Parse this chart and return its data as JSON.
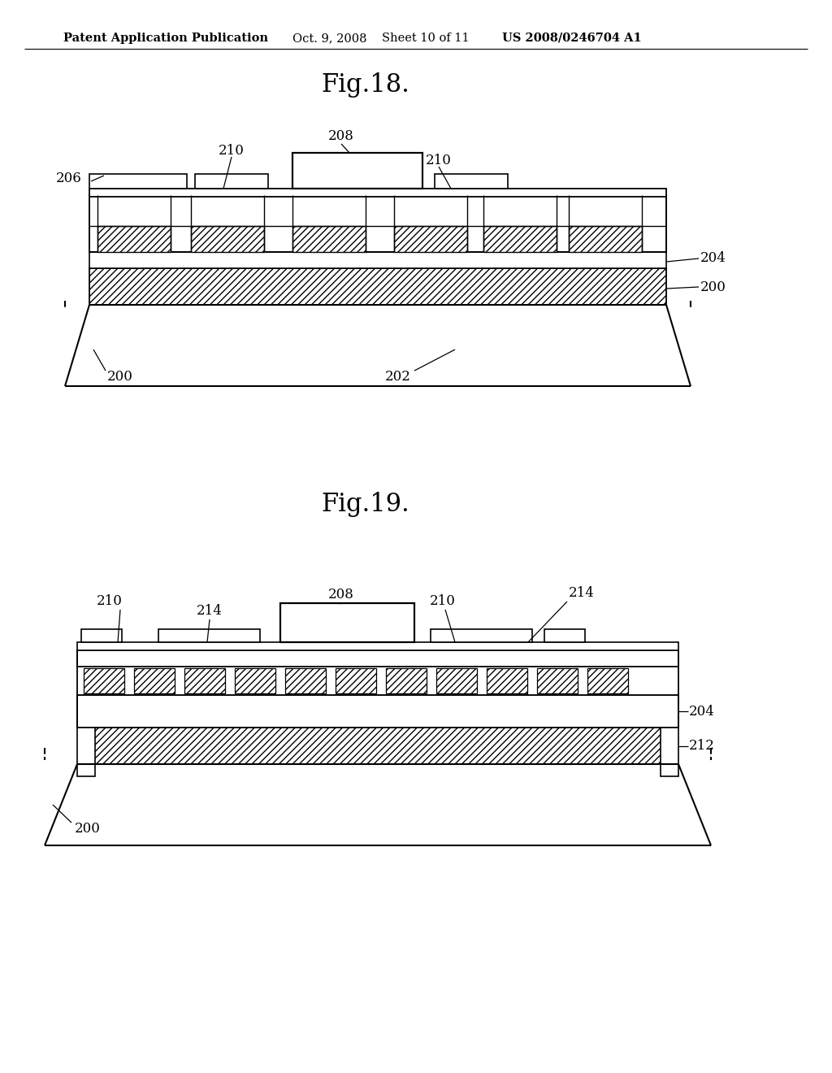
{
  "bg_color": "#ffffff",
  "header_text": "Patent Application Publication",
  "header_date": "Oct. 9, 2008",
  "header_sheet": "Sheet 10 of 11",
  "header_patent": "US 2008/0246704 A1",
  "fig18_title": "Fig.18.",
  "fig19_title": "Fig.19.",
  "line_color": "#000000",
  "label_fontsize": 12,
  "title_fontsize": 22,
  "header_fontsize": 10.5
}
